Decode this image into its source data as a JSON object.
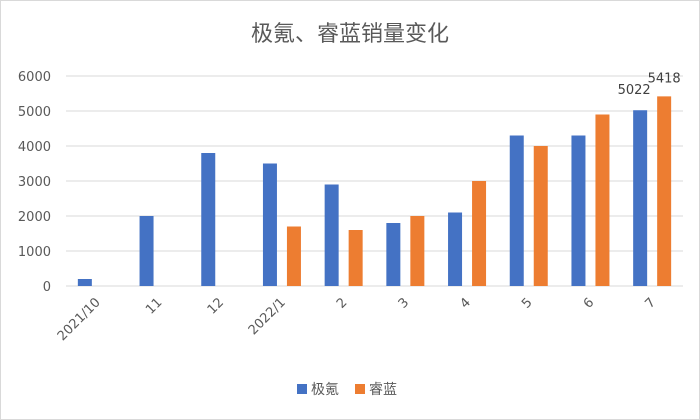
{
  "chart_data": {
    "type": "bar",
    "title": "极氪、睿蓝销量变化",
    "xlabel": "",
    "ylabel": "",
    "categories": [
      "2021/10",
      "11",
      "12",
      "2022/1",
      "2",
      "3",
      "4",
      "5",
      "6",
      "7"
    ],
    "series": [
      {
        "name": "极氪",
        "color": "#4472c4",
        "values": [
          200,
          2000,
          3800,
          3500,
          2900,
          1800,
          2100,
          4300,
          4300,
          5022
        ]
      },
      {
        "name": "睿蓝",
        "color": "#ed7d31",
        "values": [
          null,
          null,
          null,
          1700,
          1600,
          2000,
          3000,
          4000,
          4900,
          5418
        ]
      }
    ],
    "data_labels": [
      {
        "series": 0,
        "index": 9,
        "text": "5022"
      },
      {
        "series": 1,
        "index": 9,
        "text": "5418"
      }
    ],
    "ylim": [
      0,
      6000
    ],
    "yticks": [
      "0",
      "1000",
      "2000",
      "3000",
      "4000",
      "5000",
      "6000"
    ],
    "grid": true,
    "legend": "bottom"
  }
}
